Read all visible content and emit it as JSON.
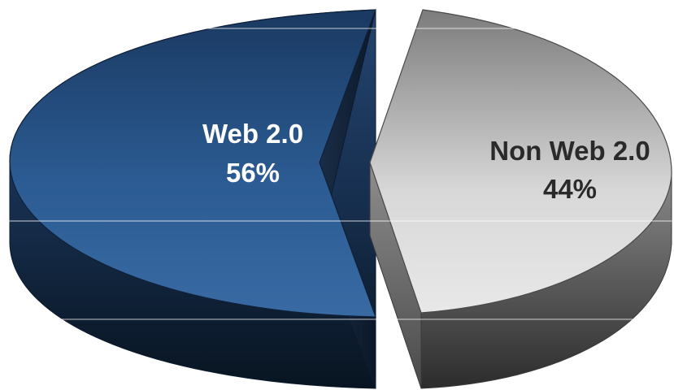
{
  "chart_data": {
    "type": "pie",
    "style": "3d-exploded",
    "categories": [
      "Web 2.0",
      "Non Web 2.0"
    ],
    "values": [
      56,
      44
    ],
    "value_labels": [
      "56%",
      "44%"
    ],
    "colors": {
      "Web 2.0": "#1e4373",
      "Non Web 2.0": "#9a9a9a"
    },
    "title": "",
    "legend": "none",
    "grid": true
  }
}
